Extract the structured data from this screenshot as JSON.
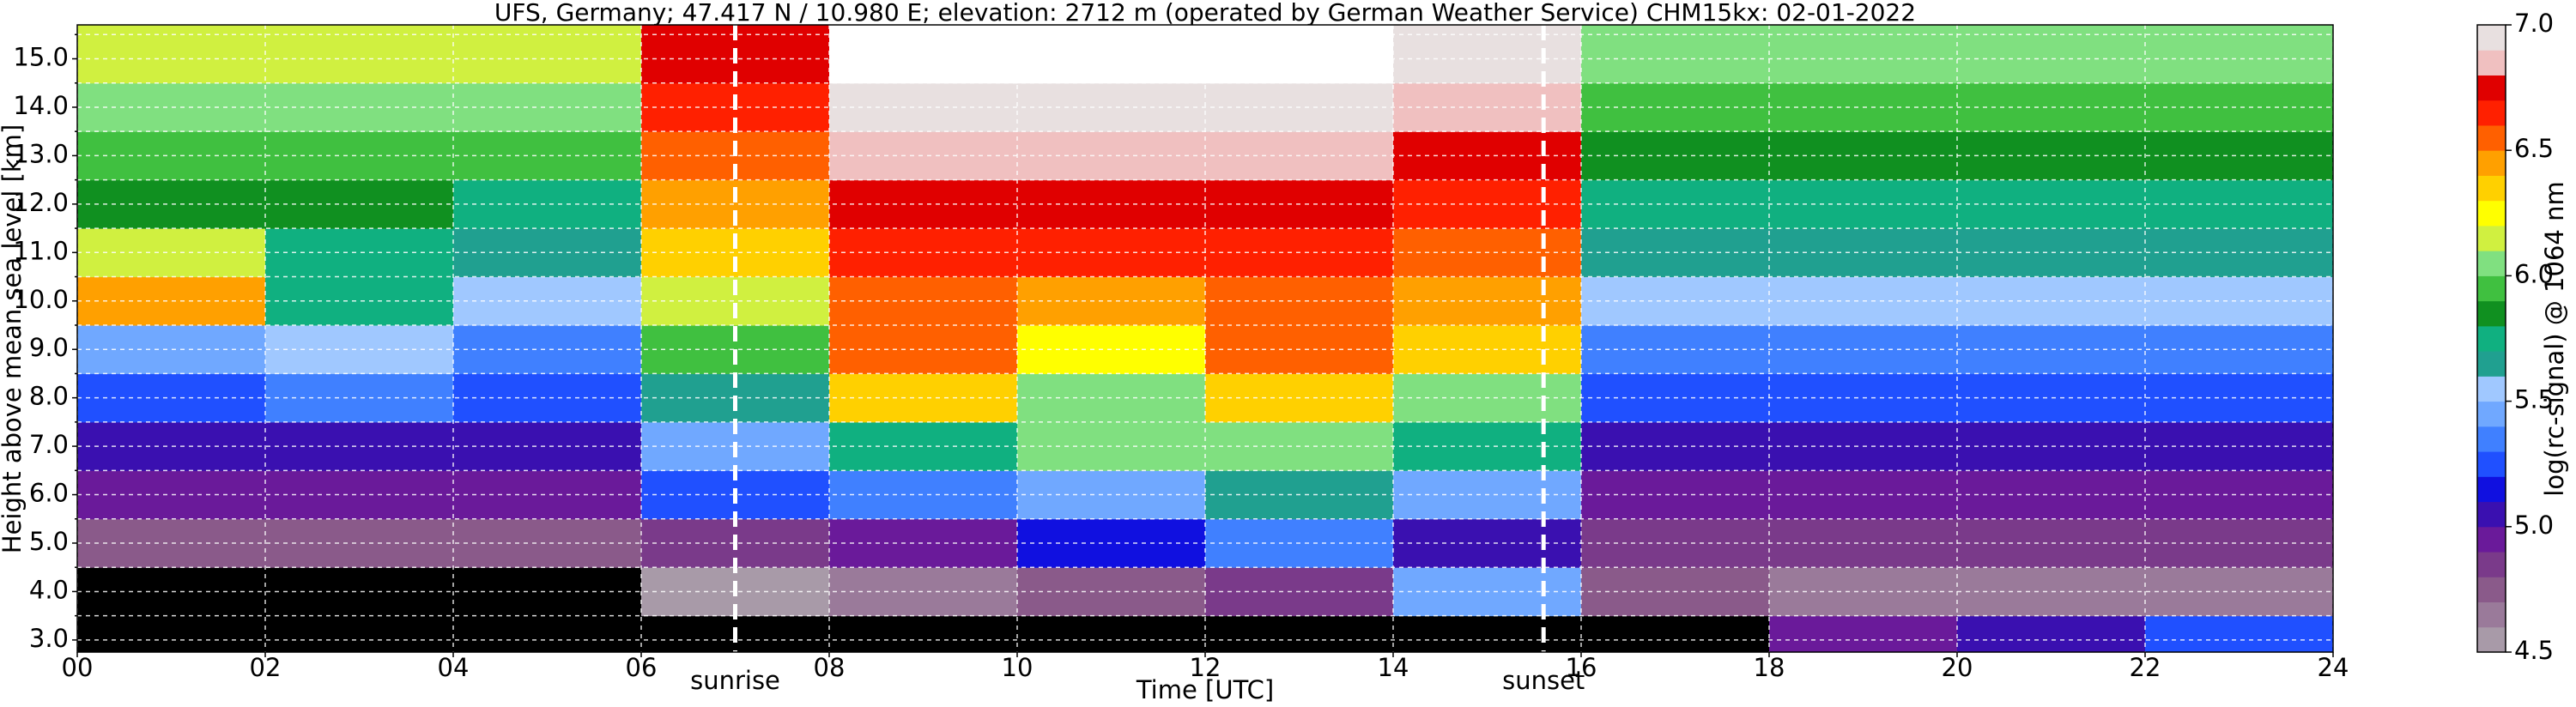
{
  "chart_data": {
    "type": "heatmap",
    "title": "UFS, Germany; 47.417 N / 10.980 E; elevation: 2712 m  (operated by German Weather Service)    CHM15kx: 02-01-2022",
    "x_label": "Time [UTC]",
    "y_label": "Height above mean sea level [km]",
    "colorbar_label": "log(rc-signal) @ 1064 nm",
    "xlim": [
      0,
      24
    ],
    "xticks": [
      {
        "value": 0,
        "label": "00"
      },
      {
        "value": 2,
        "label": "02"
      },
      {
        "value": 4,
        "label": "04"
      },
      {
        "value": 6,
        "label": "06"
      },
      {
        "value": 8,
        "label": "08"
      },
      10,
      12,
      14,
      16,
      18,
      20,
      22,
      24
    ],
    "ylim": [
      2.75,
      15.7
    ],
    "yticks": [
      {
        "value": 3,
        "label": "3.0"
      },
      3.5,
      {
        "value": 4,
        "label": "4.0"
      },
      4.5,
      {
        "value": 5,
        "label": "5.0"
      },
      5.5,
      {
        "value": 6,
        "label": "6.0"
      },
      6.5,
      {
        "value": 7,
        "label": "7.0"
      },
      7.5,
      {
        "value": 8,
        "label": "8.0"
      },
      8.5,
      {
        "value": 9,
        "label": "9.0"
      },
      9.5,
      {
        "value": 10,
        "label": "10.0"
      },
      10.5,
      {
        "value": 11,
        "label": "11.0"
      },
      11.5,
      {
        "value": 12,
        "label": "12.0"
      },
      12.5,
      {
        "value": 13,
        "label": "13.0"
      },
      13.5,
      {
        "value": 14,
        "label": "14.0"
      },
      14.5,
      {
        "value": 15,
        "label": "15.0"
      },
      15.5
    ],
    "grid": true,
    "x_edges": [
      0,
      2,
      4,
      6,
      8,
      10,
      12,
      14,
      16,
      18,
      20,
      22,
      24
    ],
    "y_edges": [
      2.75,
      3.5,
      4.5,
      5.5,
      6.5,
      7.5,
      8.5,
      9.5,
      10.5,
      11.5,
      12.5,
      13.5,
      14.5,
      15.7
    ],
    "z": [
      [
        4.3,
        4.3,
        4.3,
        4.3,
        4.3,
        4.4,
        4.4,
        4.4,
        4.4,
        4.9,
        5.0,
        5.2
      ],
      [
        4.4,
        4.4,
        4.4,
        4.5,
        4.6,
        4.7,
        4.8,
        5.4,
        4.7,
        4.6,
        4.6,
        4.6
      ],
      [
        4.7,
        4.7,
        4.7,
        4.8,
        4.9,
        5.1,
        5.3,
        5.0,
        4.8,
        4.8,
        4.8,
        4.8
      ],
      [
        4.9,
        4.9,
        4.9,
        5.2,
        5.3,
        5.4,
        5.6,
        5.4,
        4.9,
        4.9,
        4.9,
        4.9
      ],
      [
        5.0,
        5.0,
        5.0,
        5.4,
        5.7,
        6.0,
        6.0,
        5.7,
        5.0,
        5.0,
        5.0,
        5.0
      ],
      [
        5.2,
        5.3,
        5.2,
        5.6,
        6.3,
        6.0,
        6.3,
        6.0,
        5.2,
        5.2,
        5.2,
        5.2
      ],
      [
        5.4,
        5.5,
        5.3,
        5.9,
        6.5,
        6.2,
        6.5,
        6.3,
        5.3,
        5.3,
        5.3,
        5.3
      ],
      [
        6.4,
        5.7,
        5.5,
        6.1,
        6.5,
        6.4,
        6.5,
        6.4,
        5.5,
        5.5,
        5.5,
        5.5
      ],
      [
        6.1,
        5.7,
        5.6,
        6.3,
        6.6,
        6.6,
        6.6,
        6.5,
        5.6,
        5.6,
        5.6,
        5.6
      ],
      [
        5.8,
        5.8,
        5.7,
        6.4,
        6.7,
        6.7,
        6.7,
        6.6,
        5.7,
        5.7,
        5.7,
        5.7
      ],
      [
        5.9,
        5.9,
        5.9,
        6.5,
        6.8,
        6.8,
        6.8,
        6.7,
        5.8,
        5.8,
        5.8,
        5.8
      ],
      [
        6.0,
        6.0,
        6.0,
        6.6,
        6.9,
        6.9,
        6.9,
        6.8,
        5.9,
        5.9,
        5.9,
        5.9
      ],
      [
        6.1,
        6.1,
        6.1,
        6.7,
        7.0,
        7.0,
        7.0,
        6.9,
        6.0,
        6.0,
        6.0,
        6.0
      ]
    ],
    "zlim": [
      4.5,
      7.0
    ],
    "zticks": [
      4.5,
      {
        "value": 5,
        "label": "5.0"
      },
      5.5,
      {
        "value": 6,
        "label": "6.0"
      },
      6.5,
      {
        "value": 7,
        "label": "7.0"
      }
    ],
    "colormap": [
      "#a89aa8",
      "#9a7a9a",
      "#8a5a8a",
      "#7a3a8a",
      "#6a1a9a",
      "#3a10b0",
      "#1010e0",
      "#2050ff",
      "#4080ff",
      "#70a8ff",
      "#a0c8ff",
      "#20a090",
      "#10b080",
      "#109020",
      "#40c040",
      "#80e080",
      "#d0f040",
      "#ffff00",
      "#ffd000",
      "#ffa000",
      "#ff6000",
      "#ff2000",
      "#e00000",
      "#f0c0c0",
      "#e8e0e0"
    ],
    "under_color": "#000000",
    "over_color": "#ffffff",
    "annotations": [
      {
        "x": 7.0,
        "text": "sunrise"
      },
      {
        "x": 15.6,
        "text": "sunset"
      }
    ]
  }
}
